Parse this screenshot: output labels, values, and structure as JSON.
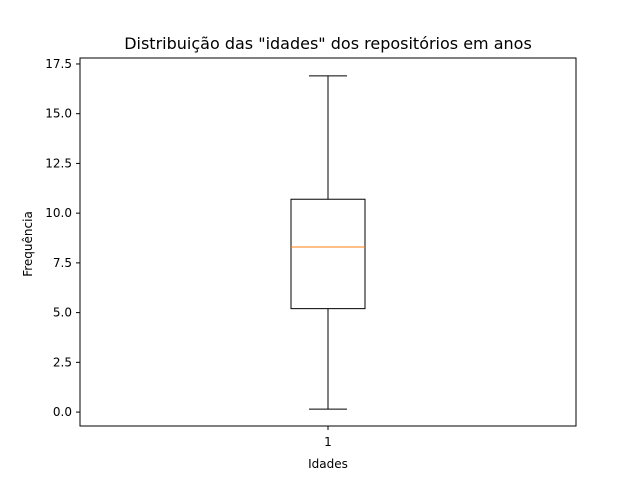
{
  "chart_data": {
    "type": "box",
    "title": "Distribuição das \"idades\" dos repositórios em anos",
    "xlabel": "Idades",
    "ylabel": "Frequência",
    "categories": [
      "1"
    ],
    "ylim": [
      -0.7,
      17.8
    ],
    "yticks": [
      "0.0",
      "2.5",
      "5.0",
      "7.5",
      "10.0",
      "12.5",
      "15.0",
      "17.5"
    ],
    "grid": false,
    "boxes": [
      {
        "label": "1",
        "whisker_low": 0.15,
        "q1": 5.2,
        "median": 8.3,
        "q3": 10.7,
        "whisker_high": 16.9
      }
    ],
    "colors": {
      "box": "#000000",
      "median": "#ff7f0e",
      "whisker": "#000000"
    }
  }
}
